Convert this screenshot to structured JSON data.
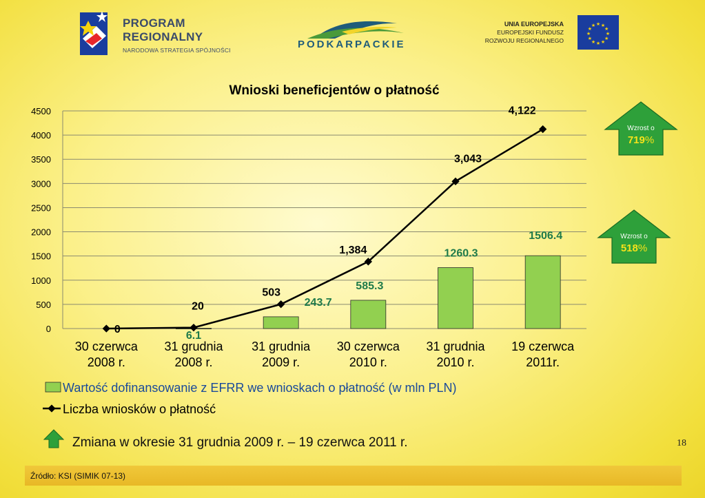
{
  "header": {
    "program_line1": "PROGRAM",
    "program_line2": "REGIONALNY",
    "program_sub": "NARODOWA STRATEGIA SPÓJNOŚCI",
    "podkarpackie": "PODKARPACKIE",
    "eu_line1": "UNIA EUROPEJSKA",
    "eu_line2": "EUROPEJSKI FUNDUSZ",
    "eu_line3": "ROZWOJU REGIONALNEGO"
  },
  "chart_data": {
    "type": "bar+line",
    "title": "Wnioski  beneficjentów o płatność",
    "categories": [
      [
        "30 czerwca",
        "2008 r."
      ],
      [
        "31 grudnia",
        "2008 r."
      ],
      [
        "31 grudnia",
        "2009 r."
      ],
      [
        "30 czerwca",
        "2010 r."
      ],
      [
        "31 grudnia",
        "2010 r."
      ],
      [
        "19 czerwca",
        "2011r."
      ]
    ],
    "ylim": [
      0,
      4500
    ],
    "yticks": [
      "0",
      "500",
      "1000",
      "1500",
      "2000",
      "2500",
      "3000",
      "3500",
      "4000",
      "4500"
    ],
    "grid": true,
    "series": [
      {
        "kind": "bar",
        "name": "Wartość dofinansowanie z EFRR we wnioskach o płatność  (w mln PLN)",
        "values": [
          0,
          6.1,
          243.7,
          585.3,
          1260.3,
          1506.4
        ],
        "labels": [
          "",
          "6.1",
          "243.7",
          "585.3",
          "1260.3",
          "1506.4"
        ],
        "color": "#92d050",
        "label_color": "#1f7a4a"
      },
      {
        "kind": "line",
        "name": "Liczba wniosków o płatność",
        "values": [
          0,
          20,
          503,
          1384,
          3043,
          4122
        ],
        "labels": [
          "0",
          "20",
          "503",
          "1,384",
          "3,043",
          "4,122"
        ],
        "color": "#000000"
      }
    ],
    "legend_position": "bottom-left"
  },
  "badges": [
    {
      "label": "Wzrost o",
      "value": "719",
      "unit": "%"
    },
    {
      "label": "Wzrost o",
      "value": "518",
      "unit": "%"
    }
  ],
  "change_note": "Zmiana w okresie 31 grudnia 2009 r. – 19 czerwca 2011 r.",
  "page_number": "18",
  "source": "Źródło: KSI (SIMIK 07-13)",
  "colors": {
    "bar_fill": "#92d050",
    "arrow_green": "#2ea03a",
    "badge_value": "#1a8a2a"
  }
}
